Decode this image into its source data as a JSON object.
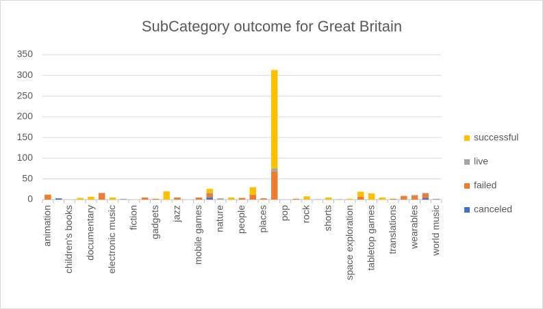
{
  "chart_data": {
    "type": "stacked_bar",
    "title": "SubCategory outcome for Great Britain",
    "categories": [
      "animation",
      null,
      "children's books",
      null,
      "documentary",
      null,
      "electronic music",
      null,
      "fiction",
      null,
      "gadgets",
      null,
      "jazz",
      null,
      "mobile games",
      null,
      "nature",
      null,
      "people",
      null,
      "places",
      null,
      "pop",
      null,
      "rock",
      null,
      "shorts",
      null,
      "space exploration",
      null,
      "tabletop games",
      null,
      "translations",
      null,
      "wearables",
      null,
      "world music"
    ],
    "series": [
      {
        "name": "canceled",
        "color": "#4472c4",
        "values": [
          0,
          3,
          0,
          0,
          0,
          0,
          0,
          0,
          0,
          0,
          0,
          0,
          0,
          0,
          0,
          5,
          0,
          0,
          0,
          0,
          0,
          0,
          0,
          0,
          0,
          0,
          0,
          0,
          0,
          0,
          0,
          0,
          0,
          0,
          0,
          4,
          0
        ]
      },
      {
        "name": "failed",
        "color": "#ed7d31",
        "values": [
          12,
          0,
          0,
          0,
          0,
          16,
          0,
          0,
          0,
          5,
          2,
          0,
          5,
          0,
          5,
          10,
          0,
          0,
          4,
          12,
          3,
          68,
          0,
          2,
          0,
          0,
          0,
          0,
          0,
          7,
          0,
          0,
          2,
          9,
          9,
          10,
          0
        ]
      },
      {
        "name": "live",
        "color": "#a5a5a5",
        "values": [
          0,
          0,
          0,
          0,
          0,
          0,
          0,
          2,
          0,
          0,
          0,
          0,
          0,
          0,
          0,
          2,
          3,
          0,
          0,
          0,
          0,
          7,
          0,
          0,
          0,
          1,
          0,
          1,
          0,
          0,
          0,
          0,
          0,
          0,
          2,
          2,
          2
        ]
      },
      {
        "name": "successful",
        "color": "#ffc000",
        "values": [
          0,
          0,
          0,
          4,
          7,
          0,
          5,
          0,
          0,
          0,
          0,
          20,
          0,
          0,
          0,
          9,
          0,
          5,
          0,
          18,
          0,
          238,
          0,
          0,
          8,
          0,
          5,
          0,
          2,
          12,
          15,
          5,
          0,
          0,
          0,
          0,
          0
        ]
      }
    ],
    "ylim": [
      0,
      350
    ],
    "yticks": [
      0,
      50,
      100,
      150,
      200,
      250,
      300,
      350
    ],
    "grid": true,
    "legend": "right"
  }
}
